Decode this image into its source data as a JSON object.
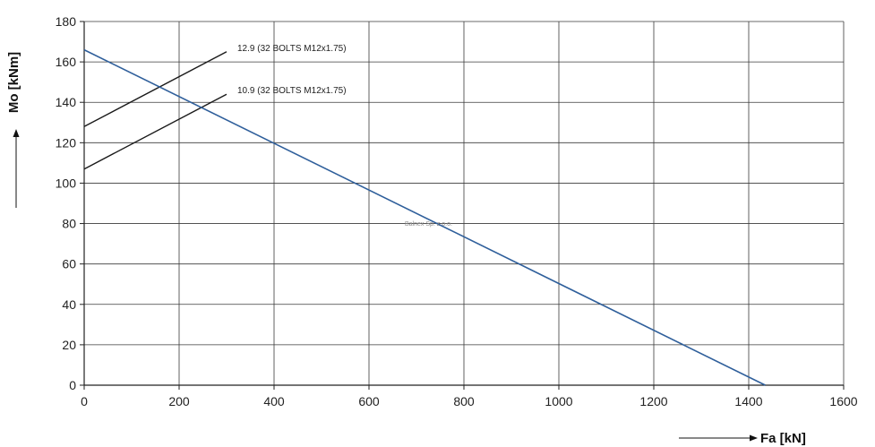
{
  "chart_data": {
    "type": "line",
    "xlabel": "Fa [kN]",
    "ylabel": "Mo [kNm]",
    "xlim": [
      0,
      1600
    ],
    "ylim": [
      0,
      180
    ],
    "x_ticks": [
      0,
      200,
      400,
      600,
      800,
      1000,
      1200,
      1400,
      1600
    ],
    "y_ticks": [
      0,
      20,
      40,
      60,
      80,
      100,
      120,
      140,
      160,
      180
    ],
    "grid": true,
    "watermark": "Balnex Sp. z o.o.",
    "series": [
      {
        "name": "12.9 (32 BOLTS M12x1.75)",
        "x": [
          0,
          300
        ],
        "y": [
          128,
          165
        ],
        "color": "#1a1a1a"
      },
      {
        "name": "10.9 (32 BOLTS M12x1.75)",
        "x": [
          0,
          300
        ],
        "y": [
          107,
          144
        ],
        "color": "#1a1a1a"
      },
      {
        "name": "",
        "x": [
          0,
          1435
        ],
        "y": [
          166,
          0
        ],
        "color": "#2f5f9b"
      }
    ]
  }
}
